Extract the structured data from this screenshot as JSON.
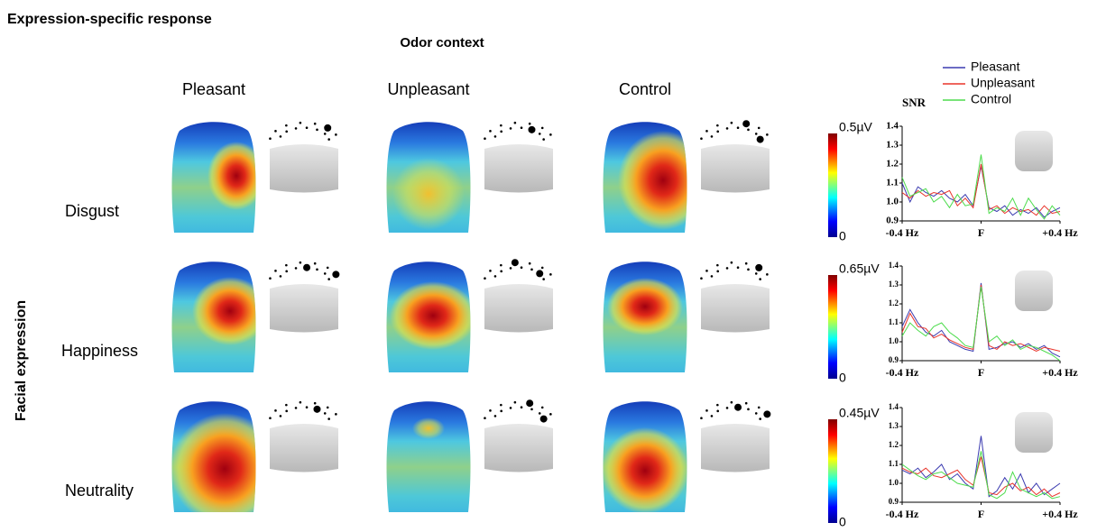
{
  "header": {
    "title": "Expression-specific response",
    "column_group": "Odor context",
    "row_group": "Facial expression"
  },
  "columns": [
    "Pleasant",
    "Unpleasant",
    "Control"
  ],
  "rows": [
    {
      "label": "Disgust",
      "scale_max": "0.5µV",
      "scale_min": "0"
    },
    {
      "label": "Happiness",
      "scale_max": "0.65µV",
      "scale_min": "0"
    },
    {
      "label": "Neutrality",
      "scale_max": "0.45µV",
      "scale_min": "0"
    }
  ],
  "snr_label": "SNR",
  "legend": [
    {
      "name": "Pleasant",
      "color": "#3b3bb0"
    },
    {
      "name": "Unpleasant",
      "color": "#e8332a"
    },
    {
      "name": "Control",
      "color": "#4ddc4d"
    }
  ],
  "snr_charts": [
    {
      "type": "line",
      "x": [
        -0.4,
        -0.36,
        -0.32,
        -0.28,
        -0.24,
        -0.2,
        -0.16,
        -0.12,
        -0.08,
        -0.04,
        0,
        0.04,
        0.08,
        0.12,
        0.16,
        0.2,
        0.24,
        0.28,
        0.32,
        0.36,
        0.4
      ],
      "series": [
        {
          "values": [
            1.1,
            1.0,
            1.08,
            1.05,
            1.03,
            1.06,
            1.02,
            1.0,
            1.04,
            0.98,
            1.19,
            0.97,
            0.95,
            0.98,
            0.93,
            0.96,
            0.94,
            0.97,
            0.92,
            0.95,
            0.97
          ]
        },
        {
          "values": [
            1.05,
            1.02,
            1.06,
            1.03,
            1.05,
            1.04,
            1.06,
            0.98,
            1.02,
            0.97,
            1.2,
            0.96,
            0.98,
            0.94,
            0.97,
            0.95,
            0.96,
            0.93,
            0.98,
            0.94,
            0.95
          ]
        },
        {
          "values": [
            1.13,
            1.03,
            1.05,
            1.07,
            1.0,
            1.03,
            0.97,
            1.04,
            0.98,
            0.99,
            1.25,
            0.94,
            0.97,
            0.95,
            1.02,
            0.93,
            1.02,
            0.96,
            0.91,
            0.98,
            0.93
          ]
        }
      ],
      "xlim": [
        -0.4,
        0.4
      ],
      "xticks": [
        {
          "value": -0.4,
          "label": "-0.4 Hz"
        },
        {
          "value": 0,
          "label": "F"
        },
        {
          "value": 0.4,
          "label": "+0.4 Hz"
        }
      ],
      "ylim": [
        0.9,
        1.4
      ],
      "yticks": [
        0.9,
        {
          "value": 1,
          "label": "1.0"
        },
        1.1,
        1.2,
        1.3,
        1.4
      ]
    },
    {
      "type": "line",
      "x": [
        -0.4,
        -0.36,
        -0.32,
        -0.28,
        -0.24,
        -0.2,
        -0.16,
        -0.12,
        -0.08,
        -0.04,
        0,
        0.04,
        0.08,
        0.12,
        0.16,
        0.2,
        0.24,
        0.28,
        0.32,
        0.36,
        0.4
      ],
      "series": [
        {
          "values": [
            1.08,
            1.17,
            1.1,
            1.05,
            1.03,
            1.06,
            1.0,
            0.98,
            0.96,
            0.95,
            1.31,
            0.96,
            0.97,
            0.99,
            1.0,
            0.97,
            0.99,
            0.96,
            0.98,
            0.94,
            0.92
          ]
        },
        {
          "values": [
            1.05,
            1.15,
            1.08,
            1.07,
            1.02,
            1.04,
            1.01,
            0.99,
            0.97,
            0.96,
            1.3,
            0.98,
            0.96,
            1.0,
            0.98,
            0.99,
            0.97,
            0.95,
            0.97,
            0.96,
            0.95
          ]
        },
        {
          "values": [
            1.03,
            1.1,
            1.06,
            1.03,
            1.08,
            1.1,
            1.05,
            1.02,
            0.98,
            0.97,
            1.29,
            1.0,
            1.03,
            0.98,
            1.01,
            0.96,
            0.98,
            0.97,
            0.95,
            0.93,
            0.9
          ]
        }
      ],
      "xlim": [
        -0.4,
        0.4
      ],
      "xticks": [
        {
          "value": -0.4,
          "label": "-0.4 Hz"
        },
        {
          "value": 0,
          "label": "F"
        },
        {
          "value": 0.4,
          "label": "+0.4 Hz"
        }
      ],
      "ylim": [
        0.9,
        1.4
      ],
      "yticks": [
        0.9,
        {
          "value": 1,
          "label": "1.0"
        },
        1.1,
        1.2,
        1.3,
        1.4
      ]
    },
    {
      "type": "line",
      "x": [
        -0.4,
        -0.36,
        -0.32,
        -0.28,
        -0.24,
        -0.2,
        -0.16,
        -0.12,
        -0.08,
        -0.04,
        0,
        0.04,
        0.08,
        0.12,
        0.16,
        0.2,
        0.24,
        0.28,
        0.32,
        0.36,
        0.4
      ],
      "series": [
        {
          "values": [
            1.07,
            1.05,
            1.08,
            1.03,
            1.06,
            1.1,
            1.02,
            1.05,
            1.0,
            0.97,
            1.25,
            0.93,
            0.96,
            1.03,
            0.97,
            1.05,
            0.95,
            1.0,
            0.94,
            0.97,
            1.0
          ]
        },
        {
          "values": [
            1.08,
            1.06,
            1.05,
            1.08,
            1.04,
            1.03,
            1.05,
            1.07,
            1.02,
            0.99,
            1.14,
            0.95,
            0.94,
            0.98,
            1.0,
            0.96,
            0.98,
            0.94,
            0.97,
            0.93,
            0.95
          ]
        },
        {
          "values": [
            1.1,
            1.07,
            1.04,
            1.02,
            1.05,
            1.06,
            1.03,
            1.0,
            0.99,
            0.98,
            1.17,
            0.94,
            0.92,
            0.95,
            1.06,
            0.97,
            0.95,
            0.93,
            0.95,
            0.92,
            0.93
          ]
        }
      ],
      "xlim": [
        -0.4,
        0.4
      ],
      "xticks": [
        {
          "value": -0.4,
          "label": "-0.4 Hz"
        },
        {
          "value": 0,
          "label": "F"
        },
        {
          "value": 0.4,
          "label": "+0.4 Hz"
        }
      ],
      "ylim": [
        0.9,
        1.4
      ],
      "yticks": [
        0.9,
        {
          "value": 1,
          "label": "1.0"
        },
        1.1,
        1.2,
        1.3,
        1.4
      ]
    }
  ]
}
